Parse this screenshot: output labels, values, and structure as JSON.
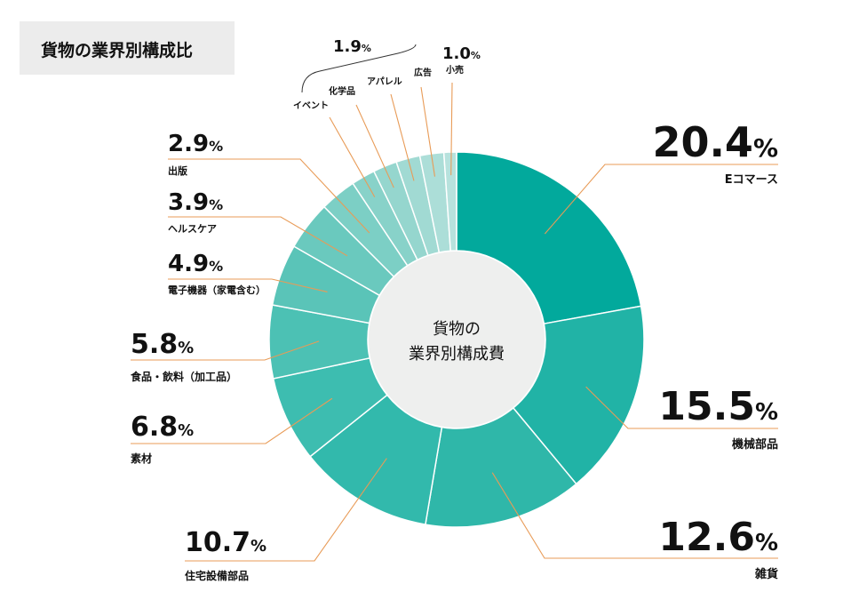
{
  "title": "貨物の業界別構成比",
  "colors": {
    "leader": "#e89b57",
    "bracket": "#333333",
    "center_fill": "#eeefee"
  },
  "chart_data": {
    "type": "pie",
    "center_label": [
      "貨物の",
      "業界別構成費"
    ],
    "slices": [
      {
        "label": "Eコマース",
        "value": 20.4,
        "value_text": "20.4",
        "color": "#02a99c"
      },
      {
        "label": "機械部品",
        "value": 15.5,
        "value_text": "15.5",
        "color": "#21b3a6"
      },
      {
        "label": "雑貨",
        "value": 12.6,
        "value_text": "12.6",
        "color": "#2fb7a9"
      },
      {
        "label": "住宅設備部品",
        "value": 10.7,
        "value_text": "10.7",
        "color": "#32b9ac"
      },
      {
        "label": "素材",
        "value": 6.8,
        "value_text": "6.8",
        "color": "#3dbdb0"
      },
      {
        "label": "食品・飲料（加工品）",
        "value": 5.8,
        "value_text": "5.8",
        "color": "#4cc1b4"
      },
      {
        "label": "電子機器（家電含む）",
        "value": 4.9,
        "value_text": "4.9",
        "color": "#5ac4b8"
      },
      {
        "label": "ヘルスケア",
        "value": 3.9,
        "value_text": "3.9",
        "color": "#6ac9be"
      },
      {
        "label": "出版",
        "value": 2.9,
        "value_text": "2.9",
        "color": "#7ccfc5"
      },
      {
        "label": "イベント",
        "value": 1.9,
        "value_text": "",
        "color": "#88d2c9"
      },
      {
        "label": "化学品",
        "value": 1.9,
        "value_text": "",
        "color": "#95d6ce"
      },
      {
        "label": "アパレル",
        "value": 1.9,
        "value_text": "",
        "color": "#a1dad3"
      },
      {
        "label": "広告",
        "value": 1.9,
        "value_text": "",
        "color": "#acded8"
      },
      {
        "label": "小売",
        "value": 1.0,
        "value_text": "1.0",
        "color": "#b7e2dd"
      }
    ],
    "group_value_text": "1.9",
    "percent_suffix": "%"
  }
}
